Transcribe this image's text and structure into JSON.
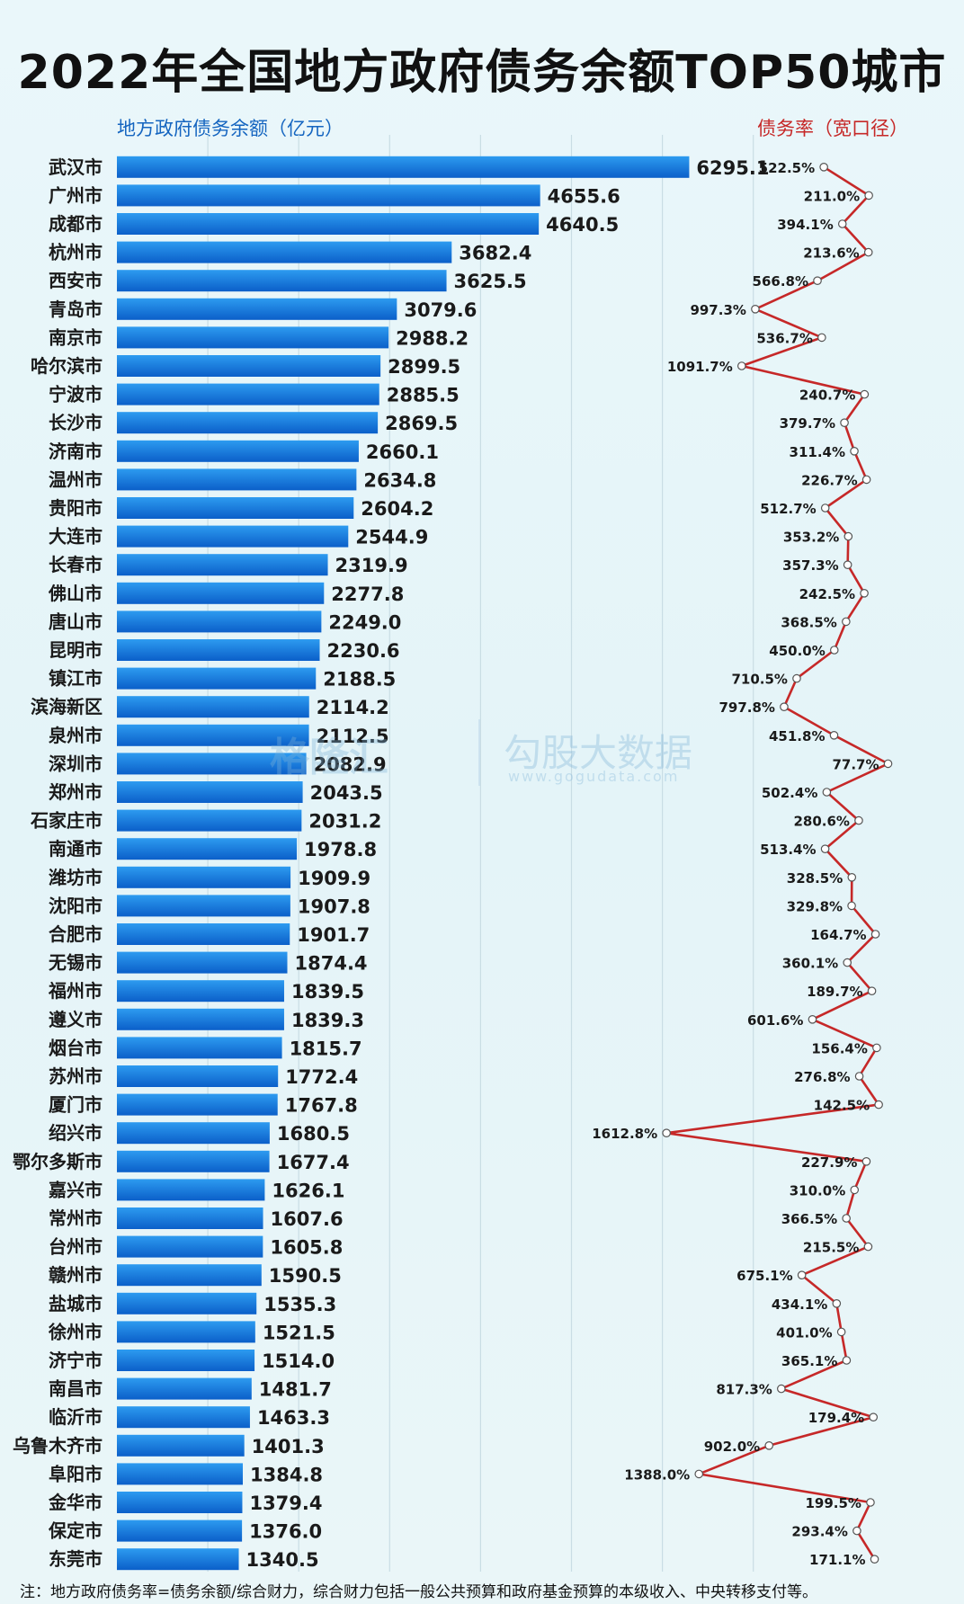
{
  "title": "2022年全国地方政府债务余额TOP50城市",
  "legend_left": "地方政府债务余额（亿元）",
  "legend_right": "债务率（宽口径）",
  "footnote": "注：地方政府债务率=债务余额/综合财力，综合财力包括一般公共预算和政府基金预算的本级收入、中央转移支付等。",
  "watermark": {
    "logo": "格隆汇",
    "site": "勾股大数据",
    "url": "www.gogudata.com"
  },
  "colors": {
    "bar_top": "#2d9bf0",
    "bar_bottom": "#0b5fc9",
    "line": "#c62828",
    "grid": "#c9dde4"
  },
  "chart_data": {
    "type": "bar",
    "categories": [
      "武汉市",
      "广州市",
      "成都市",
      "杭州市",
      "西安市",
      "青岛市",
      "南京市",
      "哈尔滨市",
      "宁波市",
      "长沙市",
      "济南市",
      "温州市",
      "贵阳市",
      "大连市",
      "长春市",
      "佛山市",
      "唐山市",
      "昆明市",
      "镇江市",
      "滨海新区",
      "泉州市",
      "深圳市",
      "郑州市",
      "石家庄市",
      "南通市",
      "潍坊市",
      "沈阳市",
      "合肥市",
      "无锡市",
      "福州市",
      "遵义市",
      "烟台市",
      "苏州市",
      "厦门市",
      "绍兴市",
      "鄂尔多斯市",
      "嘉兴市",
      "常州市",
      "台州市",
      "赣州市",
      "盐城市",
      "徐州市",
      "济宁市",
      "南昌市",
      "临沂市",
      "乌鲁木齐市",
      "阜阳市",
      "金华市",
      "保定市",
      "东莞市"
    ],
    "series": [
      {
        "name": "地方政府债务余额（亿元）",
        "type": "bar",
        "values": [
          6295.1,
          4655.6,
          4640.5,
          3682.4,
          3625.5,
          3079.6,
          2988.2,
          2899.5,
          2885.5,
          2869.5,
          2660.1,
          2634.8,
          2604.2,
          2544.9,
          2319.9,
          2277.8,
          2249.0,
          2230.6,
          2188.5,
          2114.2,
          2112.5,
          2082.9,
          2043.5,
          2031.2,
          1978.8,
          1909.9,
          1907.8,
          1901.7,
          1874.4,
          1839.5,
          1839.3,
          1815.7,
          1772.4,
          1767.8,
          1680.5,
          1677.4,
          1626.1,
          1607.6,
          1605.8,
          1590.5,
          1535.3,
          1521.5,
          1514.0,
          1481.7,
          1463.3,
          1401.3,
          1384.8,
          1379.4,
          1376.0,
          1340.5
        ],
        "labels": [
          "6295.1",
          "4655.6",
          "4640.5",
          "3682.4",
          "3625.5",
          "3079.6",
          "2988.2",
          "2899.5",
          "2885.5",
          "2869.5",
          "2660.1",
          "2634.8",
          "2604.2",
          "2544.9",
          "2319.9",
          "2277.8",
          "2249.0",
          "2230.6",
          "2188.5",
          "2114.2",
          "2112.5",
          "2082.9",
          "2043.5",
          "2031.2",
          "1978.8",
          "1909.9",
          "1907.8",
          "1901.7",
          "1874.4",
          "1839.5",
          "1839.3",
          "1815.7",
          "1772.4",
          "1767.8",
          "1680.5",
          "1677.4",
          "1626.1",
          "1607.6",
          "1605.8",
          "1590.5",
          "1535.3",
          "1521.5",
          "1514.0",
          "1481.7",
          "1463.3",
          "1401.3",
          "1384.8",
          "1379.4",
          "1376.0",
          "1340.5"
        ]
      },
      {
        "name": "债务率（宽口径）",
        "type": "line",
        "values": [
          522.5,
          211.0,
          394.1,
          213.6,
          566.8,
          997.3,
          536.7,
          1091.7,
          240.7,
          379.7,
          311.4,
          226.7,
          512.7,
          353.2,
          357.3,
          242.5,
          368.5,
          450.0,
          710.5,
          797.8,
          451.8,
          77.7,
          502.4,
          280.6,
          513.4,
          328.5,
          329.8,
          164.7,
          360.1,
          189.7,
          601.6,
          156.4,
          276.8,
          142.5,
          1612.8,
          227.9,
          310.0,
          366.5,
          215.5,
          675.1,
          434.1,
          401.0,
          365.1,
          817.3,
          179.4,
          902.0,
          1388.0,
          199.5,
          293.4,
          171.1
        ],
        "labels": [
          "522.5%",
          "211.0%",
          "394.1%",
          "213.6%",
          "566.8%",
          "997.3%",
          "536.7%",
          "1091.7%",
          "240.7%",
          "379.7%",
          "311.4%",
          "226.7%",
          "512.7%",
          "353.2%",
          "357.3%",
          "242.5%",
          "368.5%",
          "450.0%",
          "710.5%",
          "797.8%",
          "451.8%",
          "77.7%",
          "502.4%",
          "280.6%",
          "513.4%",
          "328.5%",
          "329.8%",
          "164.7%",
          "360.1%",
          "189.7%",
          "601.6%",
          "156.4%",
          "276.8%",
          "142.5%",
          "1612.8%",
          "227.9%",
          "310.0%",
          "366.5%",
          "215.5%",
          "675.1%",
          "434.1%",
          "401.0%",
          "365.1%",
          "817.3%",
          "179.4%",
          "902.0%",
          "1388.0%",
          "199.5%",
          "293.4%",
          "171.1%"
        ]
      }
    ],
    "bar_xlim": [
      0,
      7000
    ],
    "line_reversed": true,
    "grid": true
  }
}
